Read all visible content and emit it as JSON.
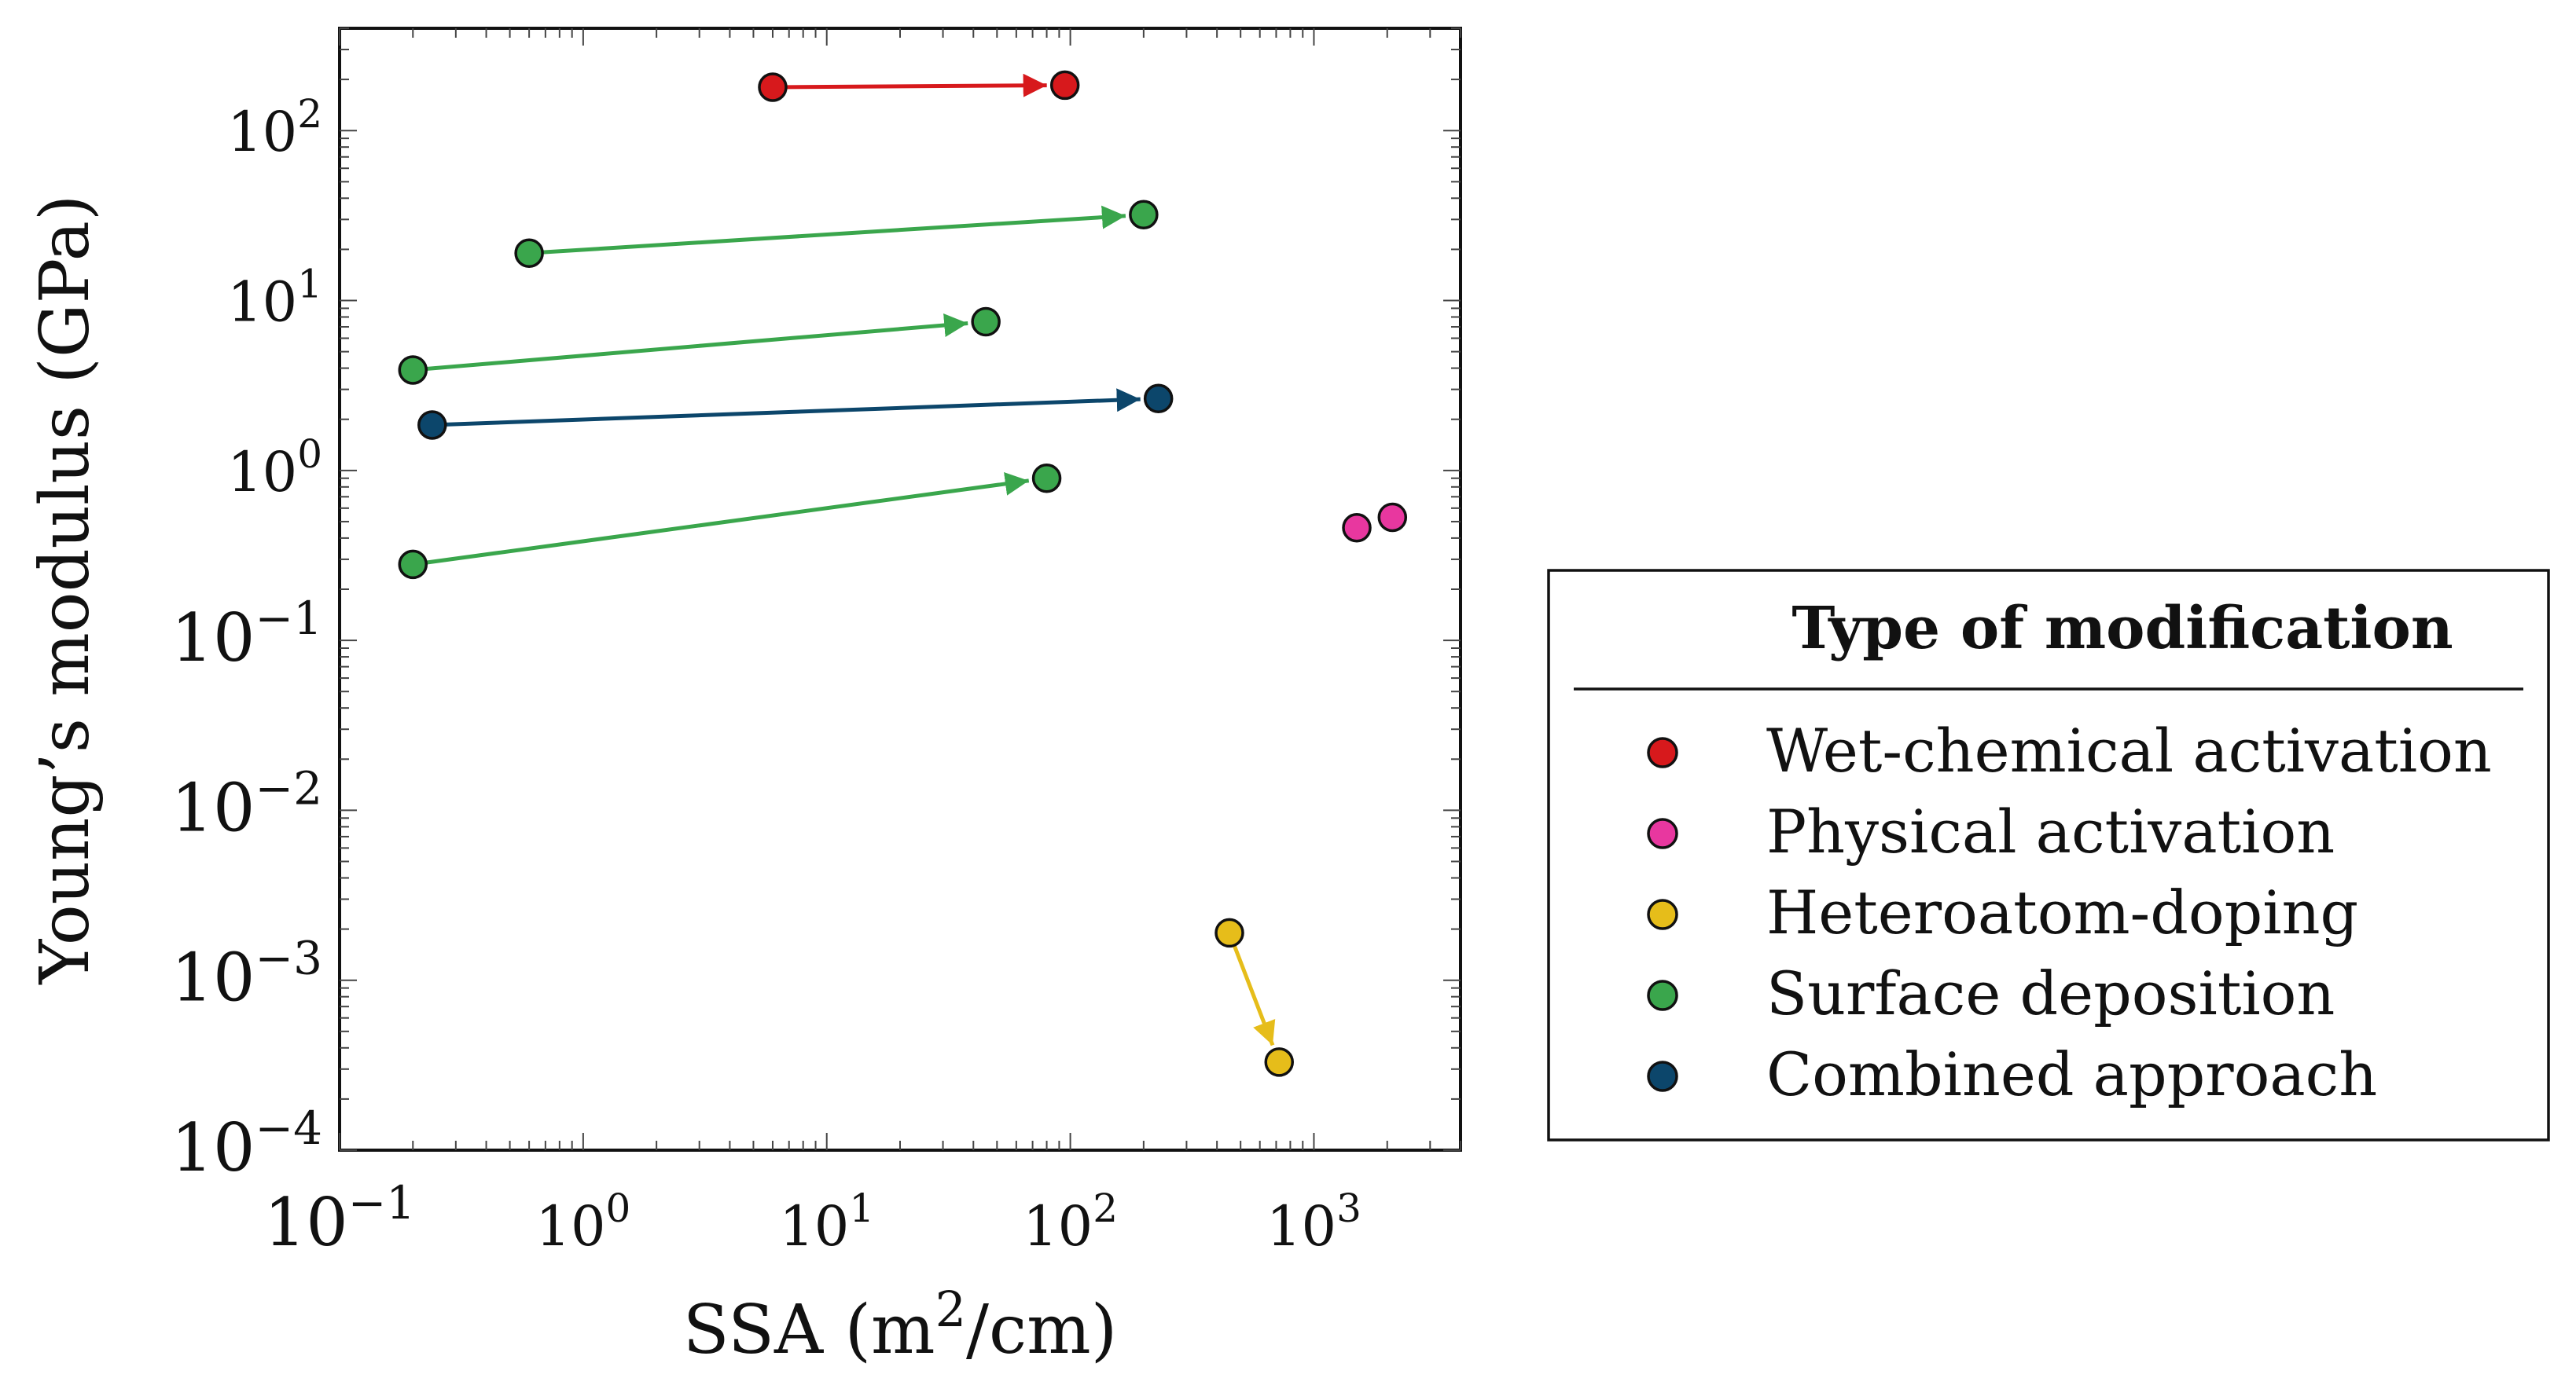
{
  "chart_data": {
    "type": "scatter",
    "xscale": "log",
    "yscale": "log",
    "xlim": [
      0.1,
      4000
    ],
    "ylim": [
      0.0001,
      400
    ],
    "xlabel": "SSA (m²/cm)",
    "ylabel": "Young’s modulus (GPa)",
    "x_ticks": [
      {
        "value": 0.1,
        "base": "10",
        "exp": "−1"
      },
      {
        "value": 1,
        "base": "10",
        "exp": "0"
      },
      {
        "value": 10,
        "base": "10",
        "exp": "1"
      },
      {
        "value": 100,
        "base": "10",
        "exp": "2"
      },
      {
        "value": 1000,
        "base": "10",
        "exp": "3"
      }
    ],
    "y_ticks": [
      {
        "value": 0.0001,
        "base": "10",
        "exp": "−4"
      },
      {
        "value": 0.001,
        "base": "10",
        "exp": "−3"
      },
      {
        "value": 0.01,
        "base": "10",
        "exp": "−2"
      },
      {
        "value": 0.1,
        "base": "10",
        "exp": "−1"
      },
      {
        "value": 1,
        "base": "10",
        "exp": "0"
      },
      {
        "value": 10,
        "base": "10",
        "exp": "1"
      },
      {
        "value": 100,
        "base": "10",
        "exp": "2"
      }
    ],
    "legend": {
      "title": "Type of modification",
      "placement": "right"
    },
    "series": [
      {
        "name": "Wet-chemical activation",
        "color": "#d7191c",
        "points": [
          {
            "x": 6,
            "y": 180
          },
          {
            "x": 95,
            "y": 185
          }
        ],
        "arrows": [
          {
            "from": [
              6,
              180
            ],
            "to": [
              95,
              185
            ]
          }
        ]
      },
      {
        "name": "Physical activation",
        "color": "#e8379f",
        "points": [
          {
            "x": 1500,
            "y": 0.46
          },
          {
            "x": 2100,
            "y": 0.53
          }
        ],
        "arrows": []
      },
      {
        "name": "Heteroatom-doping",
        "color": "#e6bd1a",
        "points": [
          {
            "x": 450,
            "y": 0.0019
          },
          {
            "x": 720,
            "y": 0.00033
          }
        ],
        "arrows": [
          {
            "from": [
              450,
              0.0019
            ],
            "to": [
              720,
              0.00033
            ]
          }
        ]
      },
      {
        "name": "Surface deposition",
        "color": "#3aa64c",
        "points": [
          {
            "x": 0.6,
            "y": 19
          },
          {
            "x": 200,
            "y": 32
          },
          {
            "x": 0.2,
            "y": 3.9
          },
          {
            "x": 45,
            "y": 7.5
          },
          {
            "x": 0.2,
            "y": 0.28
          },
          {
            "x": 80,
            "y": 0.9
          }
        ],
        "arrows": [
          {
            "from": [
              0.6,
              19
            ],
            "to": [
              200,
              32
            ]
          },
          {
            "from": [
              0.2,
              3.9
            ],
            "to": [
              45,
              7.5
            ]
          },
          {
            "from": [
              0.2,
              0.28
            ],
            "to": [
              80,
              0.9
            ]
          }
        ]
      },
      {
        "name": "Combined approach",
        "color": "#0c466b",
        "points": [
          {
            "x": 0.24,
            "y": 1.85
          },
          {
            "x": 230,
            "y": 2.65
          }
        ],
        "arrows": [
          {
            "from": [
              0.24,
              1.85
            ],
            "to": [
              230,
              2.65
            ]
          }
        ]
      }
    ]
  }
}
